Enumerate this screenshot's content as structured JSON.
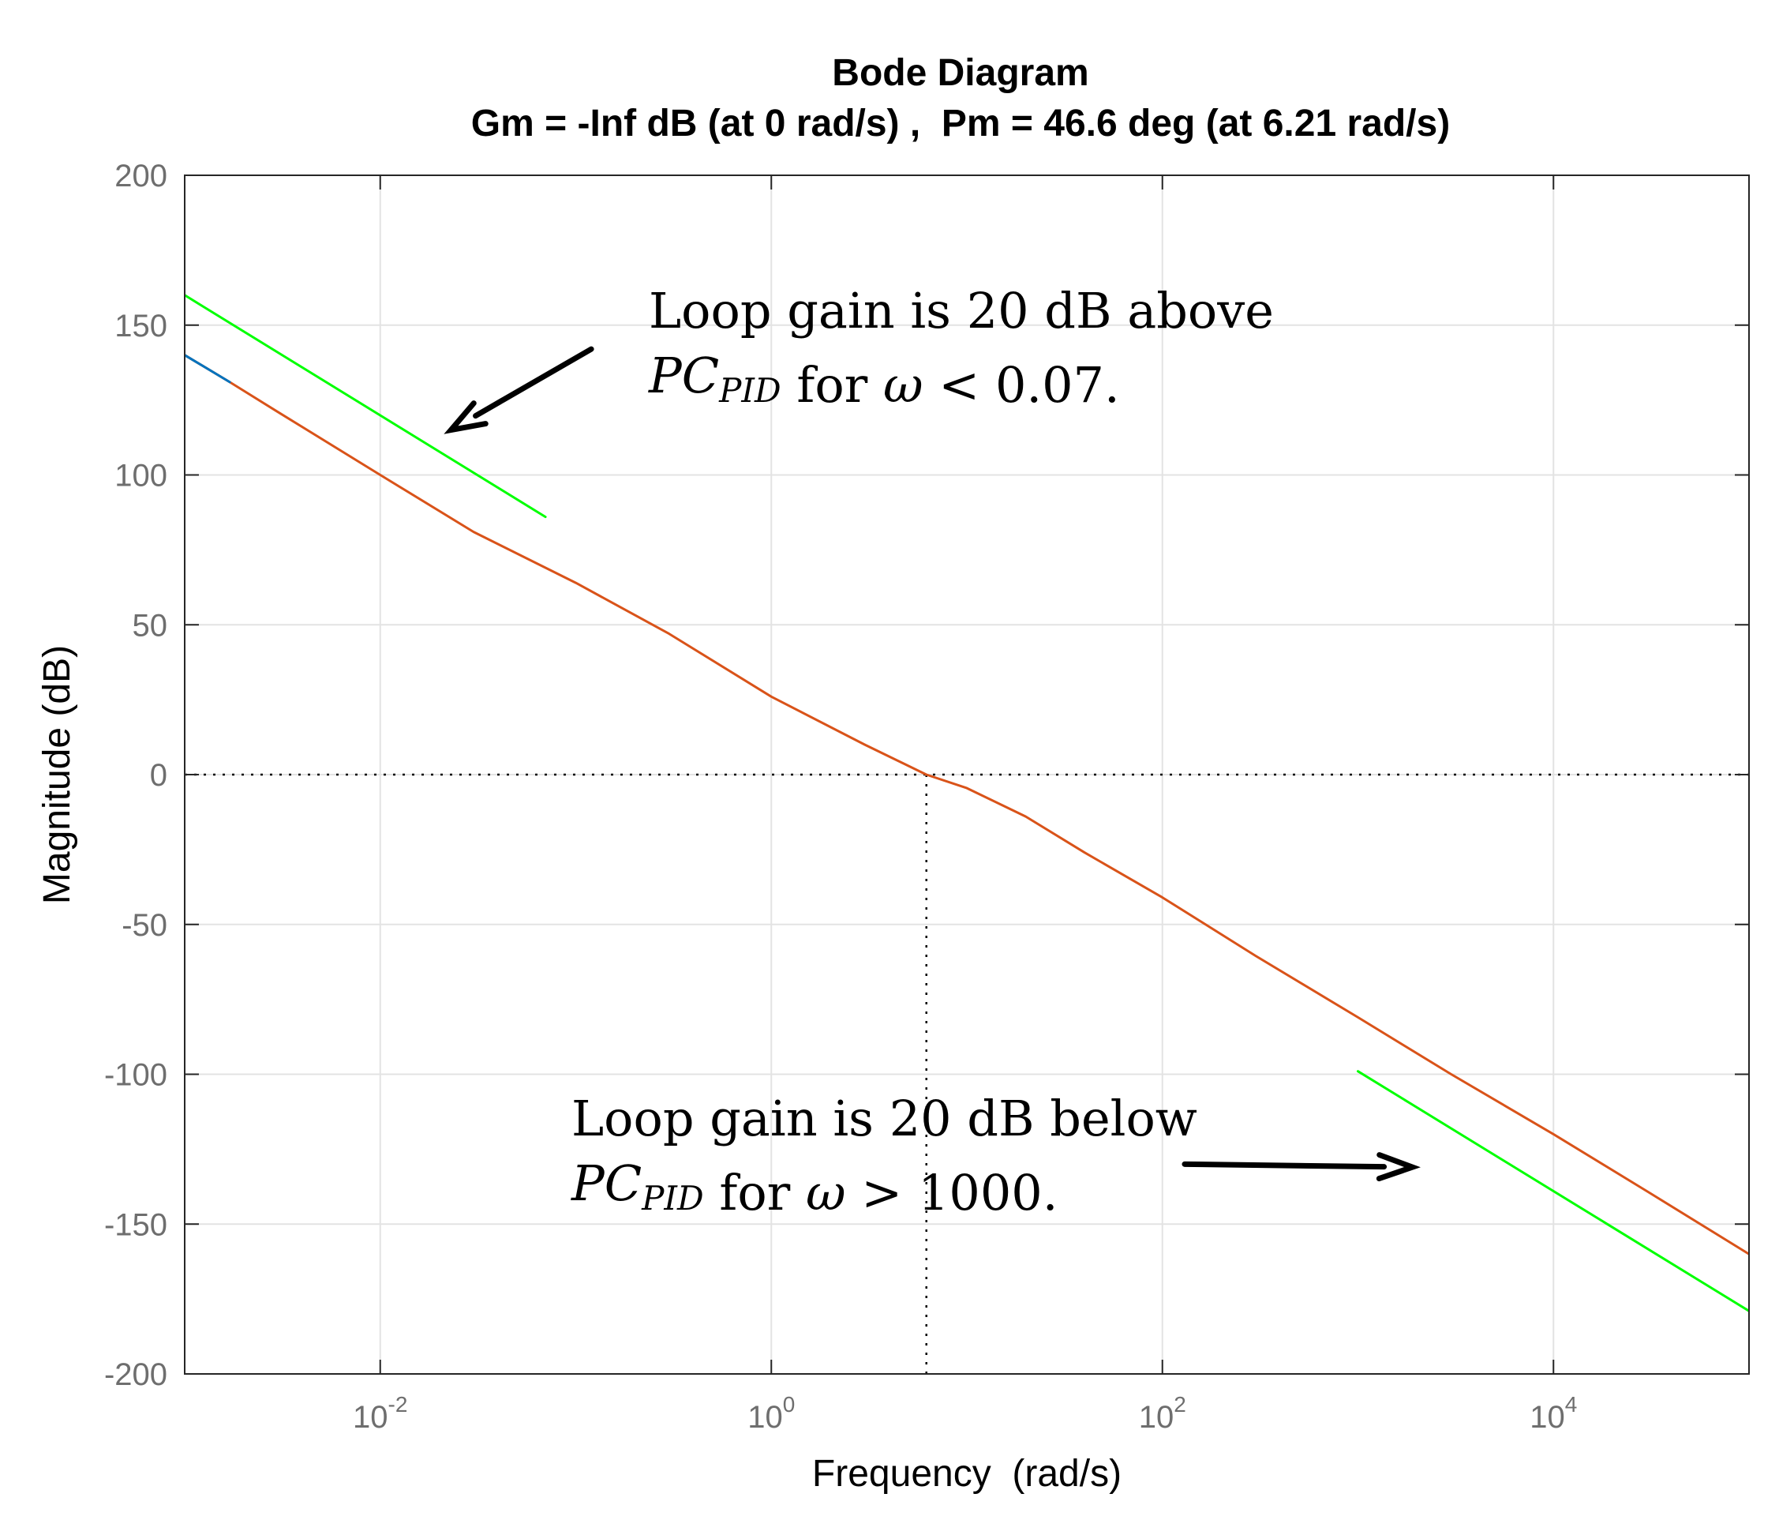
{
  "chart_data": {
    "type": "line",
    "title": "Bode Diagram",
    "subtitle": "Gm = -Inf dB (at 0 rad/s) ,  Pm = 46.6 deg (at 6.21 rad/s)",
    "xlabel": "Frequency  (rad/s)",
    "ylabel": "Magnitude (dB)",
    "xscale": "log",
    "xlim": [
      0.001,
      100000
    ],
    "ylim": [
      -200,
      200
    ],
    "grid": true,
    "legend": "none",
    "x_ticks": [
      {
        "value": 0.01,
        "base": "10",
        "exp": "-2"
      },
      {
        "value": 1,
        "base": "10",
        "exp": "0"
      },
      {
        "value": 100,
        "base": "10",
        "exp": "2"
      },
      {
        "value": 10000,
        "base": "10",
        "exp": "4"
      }
    ],
    "y_ticks": [
      200,
      150,
      100,
      50,
      0,
      -50,
      -100,
      -150,
      -200
    ],
    "series": [
      {
        "color": "#d95319",
        "x": [
          0.001,
          0.0017,
          0.003,
          0.01,
          0.03,
          0.1,
          0.3,
          1,
          3,
          6.21,
          10,
          20,
          40,
          100,
          300,
          1000,
          3000,
          10000,
          30000,
          100000
        ],
        "y": [
          140,
          131,
          121,
          100,
          81,
          64,
          47,
          26,
          10,
          0,
          -4.5,
          -14,
          -26,
          -41,
          -60.5,
          -81,
          -100,
          -120,
          -139,
          -160
        ]
      },
      {
        "color": "#00ff00",
        "x": [
          0.001,
          0.07
        ],
        "y": [
          160,
          86
        ]
      },
      {
        "color": "#00ff00",
        "x": [
          1000,
          100000
        ],
        "y": [
          -99,
          -179
        ]
      },
      {
        "color": "#0072bd",
        "x": [
          0.001,
          0.0017
        ],
        "y": [
          140,
          131
        ]
      }
    ],
    "reference_lines": {
      "zero_db": 0,
      "crossover_frequency": 6.21
    },
    "annotations": [
      {
        "lines": [
          [
            {
              "t": "Loop gain is 20 dB above"
            }
          ],
          [
            {
              "t": "PC",
              "style": "it"
            },
            {
              "t": "PID",
              "style": "it",
              "sub": true
            },
            {
              "t": " for "
            },
            {
              "t": "ω",
              "style": "it"
            },
            {
              "t": " < 0.07."
            }
          ]
        ],
        "arrow_from": {
          "x": 0.12,
          "y": 142
        },
        "arrow_to": {
          "x": 0.023,
          "y": 115
        }
      },
      {
        "lines": [
          [
            {
              "t": "Loop gain is 20 dB below"
            }
          ],
          [
            {
              "t": "PC",
              "style": "it"
            },
            {
              "t": "PID",
              "style": "it",
              "sub": true
            },
            {
              "t": " for "
            },
            {
              "t": "ω",
              "style": "it"
            },
            {
              "t": " > 1000."
            }
          ]
        ],
        "arrow_from": {
          "x": 130,
          "y": -130
        },
        "arrow_to": {
          "x": 1900,
          "y": -131
        }
      }
    ]
  }
}
